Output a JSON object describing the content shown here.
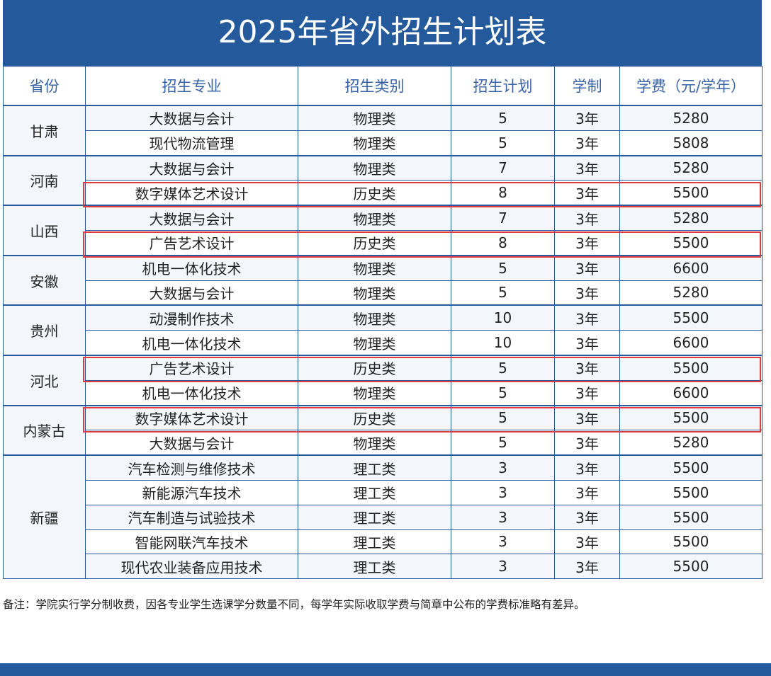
{
  "title": "2025年省外招生计划表",
  "headers": [
    "省份",
    "招生专业",
    "招生类别",
    "招生计划",
    "学制",
    "学费（元/学年）"
  ],
  "groups": [
    {
      "province": "甘肃",
      "rows": [
        {
          "major": "大数据与会计",
          "category": "物理类",
          "plan": "5",
          "duration": "3年",
          "fee": "5280"
        },
        {
          "major": "现代物流管理",
          "category": "物理类",
          "plan": "5",
          "duration": "3年",
          "fee": "5808"
        }
      ]
    },
    {
      "province": "河南",
      "rows": [
        {
          "major": "大数据与会计",
          "category": "物理类",
          "plan": "7",
          "duration": "3年",
          "fee": "5280"
        },
        {
          "major": "数字媒体艺术设计",
          "category": "历史类",
          "plan": "8",
          "duration": "3年",
          "fee": "5500",
          "highlighted": true
        }
      ]
    },
    {
      "province": "山西",
      "rows": [
        {
          "major": "大数据与会计",
          "category": "物理类",
          "plan": "7",
          "duration": "3年",
          "fee": "5280"
        },
        {
          "major": "广告艺术设计",
          "category": "历史类",
          "plan": "8",
          "duration": "3年",
          "fee": "5500",
          "highlighted": true
        }
      ]
    },
    {
      "province": "安徽",
      "rows": [
        {
          "major": "机电一体化技术",
          "category": "物理类",
          "plan": "5",
          "duration": "3年",
          "fee": "6600"
        },
        {
          "major": "大数据与会计",
          "category": "物理类",
          "plan": "5",
          "duration": "3年",
          "fee": "5280"
        }
      ]
    },
    {
      "province": "贵州",
      "rows": [
        {
          "major": "动漫制作技术",
          "category": "物理类",
          "plan": "10",
          "duration": "3年",
          "fee": "5500"
        },
        {
          "major": "机电一体化技术",
          "category": "物理类",
          "plan": "10",
          "duration": "3年",
          "fee": "6600"
        }
      ]
    },
    {
      "province": "河北",
      "rows": [
        {
          "major": "广告艺术设计",
          "category": "历史类",
          "plan": "5",
          "duration": "3年",
          "fee": "5500",
          "highlighted": true
        },
        {
          "major": "机电一体化技术",
          "category": "物理类",
          "plan": "5",
          "duration": "3年",
          "fee": "6600"
        }
      ]
    },
    {
      "province": "内蒙古",
      "rows": [
        {
          "major": "数字媒体艺术设计",
          "category": "历史类",
          "plan": "5",
          "duration": "3年",
          "fee": "5500",
          "highlighted": true
        },
        {
          "major": "大数据与会计",
          "category": "物理类",
          "plan": "5",
          "duration": "3年",
          "fee": "5280"
        }
      ]
    },
    {
      "province": "新疆",
      "rows": [
        {
          "major": "汽车检测与维修技术",
          "category": "理工类",
          "plan": "3",
          "duration": "3年",
          "fee": "5500"
        },
        {
          "major": "新能源汽车技术",
          "category": "理工类",
          "plan": "3",
          "duration": "3年",
          "fee": "5500"
        },
        {
          "major": "汽车制造与试验技术",
          "category": "理工类",
          "plan": "3",
          "duration": "3年",
          "fee": "5500"
        },
        {
          "major": "智能网联汽车技术",
          "category": "理工类",
          "plan": "3",
          "duration": "3年",
          "fee": "5500"
        },
        {
          "major": "现代农业装备应用技术",
          "category": "理工类",
          "plan": "3",
          "duration": "3年",
          "fee": "5500"
        }
      ]
    }
  ],
  "note": "备注：学院实行学分制收费，因各专业学生选课学分数量不同，每学年实际收取学费与简章中公布的学费标准略有差异。",
  "colors": {
    "header_bar": "#245a9b",
    "border": "#28599a",
    "highlight": "#e03a3e",
    "header_text": "#3a64a8"
  }
}
